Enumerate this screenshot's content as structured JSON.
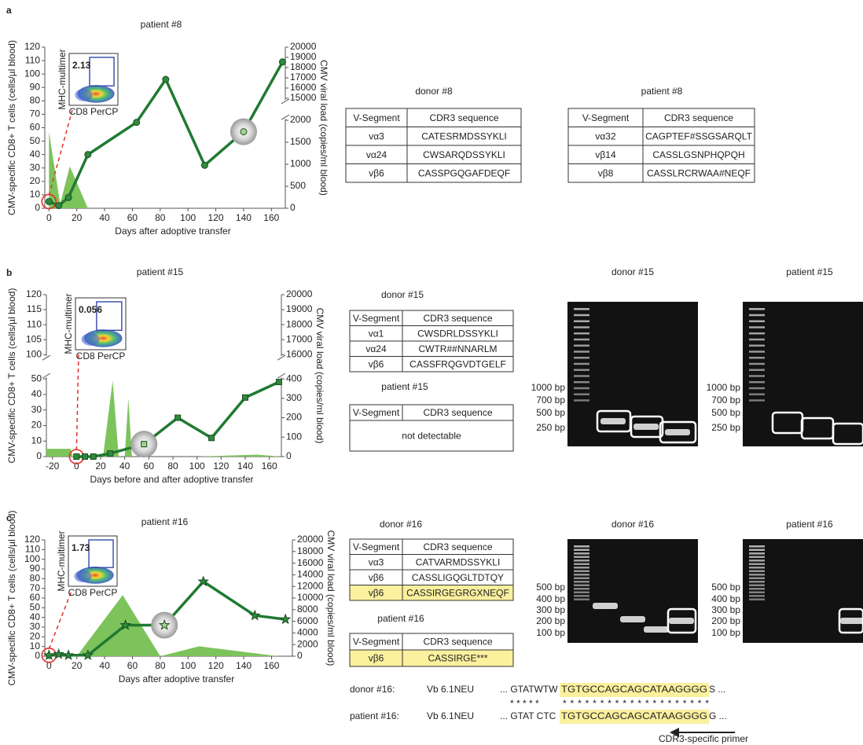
{
  "panel_labels": [
    "a",
    "b",
    "c"
  ],
  "chart_data": [
    {
      "type": "line",
      "title": "patient #8",
      "xlabel": "Days after adoptive transfer",
      "ylabel": "CMV-specific CD8+ T cells (cells/µl blood)",
      "y2label": "CMV viral load (copies/ml blood)",
      "xlim": [
        -3,
        170
      ],
      "xticks": [
        0,
        20,
        40,
        60,
        80,
        100,
        120,
        140,
        160
      ],
      "ylim": [
        0,
        120
      ],
      "yticks": [
        0,
        10,
        20,
        30,
        40,
        50,
        60,
        70,
        80,
        90,
        100,
        110,
        120
      ],
      "y2lim": [
        0,
        20000
      ],
      "y2ticks": [
        0,
        500,
        1000,
        1500,
        2000,
        15000,
        16000,
        17000,
        18000,
        19000,
        20000
      ],
      "y2_break": [
        2000,
        15000
      ],
      "series": [
        {
          "type": "area",
          "axis": "y2",
          "color": "#7dc35b",
          "x": [
            0,
            0,
            8,
            15,
            28
          ],
          "values": [
            0,
            1740,
            100,
            950,
            0
          ]
        },
        {
          "type": "line",
          "axis": "y",
          "color": "#1f7a31",
          "marker": "circle",
          "highlighted_point": 7,
          "x": [
            0,
            7,
            14,
            28,
            63,
            84,
            112,
            140,
            168
          ],
          "values": [
            5,
            2,
            8,
            40,
            64,
            96,
            32,
            57,
            109
          ]
        }
      ],
      "inset": {
        "gate_value": 2.13,
        "ylabel": "MHC-multimer",
        "xlabel": "CD8 PerCP"
      }
    },
    {
      "type": "line",
      "title": "patient #15",
      "xlabel": "Days before and after adoptive transfer",
      "ylabel": "CMV-specific CD8+ T cells (cells/µl blood)",
      "y2label": "CMV viral load (copies/ml blood)",
      "xlim": [
        -25,
        170
      ],
      "xticks": [
        -20,
        0,
        20,
        40,
        60,
        80,
        100,
        120,
        140,
        160
      ],
      "ylim": [
        0,
        120
      ],
      "yticks": [
        0,
        10,
        20,
        30,
        40,
        50,
        100,
        105,
        110,
        115,
        120
      ],
      "y_break": [
        50,
        100
      ],
      "y2lim": [
        0,
        20000
      ],
      "y2ticks": [
        0,
        100,
        200,
        300,
        400,
        16000,
        17000,
        18000,
        19000,
        20000
      ],
      "y2_break": [
        400,
        16000
      ],
      "series": [
        {
          "type": "area",
          "axis": "y2",
          "color": "#7dc35b",
          "x": [
            -25,
            -25,
            -5,
            -3,
            22,
            30,
            35,
            40,
            43,
            46,
            100,
            150,
            170
          ],
          "values": [
            0,
            40,
            40,
            0,
            0,
            390,
            0,
            0,
            300,
            0,
            0,
            10,
            0
          ]
        },
        {
          "type": "line",
          "axis": "y",
          "color": "#1f7a31",
          "marker": "square",
          "highlighted_point": 4,
          "x": [
            0,
            7,
            14,
            28,
            56,
            84,
            112,
            140,
            168
          ],
          "values": [
            0,
            0,
            0,
            2,
            8,
            25,
            12,
            38,
            48
          ]
        }
      ],
      "inset": {
        "gate_value": 0.056,
        "ylabel": "MHC-multimer",
        "xlabel": "CD8 PerCP"
      }
    },
    {
      "type": "line",
      "title": "patient #16",
      "xlabel": "Days after adoptive transfer",
      "ylabel": "CMV-specific CD8+ T cells (cells/µl blood)",
      "y2label": "CMV viral load (copies/ml blood)",
      "xlim": [
        -3,
        175
      ],
      "xticks": [
        0,
        20,
        40,
        60,
        80,
        100,
        120,
        140,
        160
      ],
      "ylim": [
        0,
        120
      ],
      "yticks": [
        0,
        10,
        20,
        30,
        40,
        50,
        60,
        70,
        80,
        90,
        100,
        110,
        120
      ],
      "y2lim": [
        0,
        20000
      ],
      "y2ticks": [
        0,
        2000,
        4000,
        6000,
        8000,
        10000,
        12000,
        14000,
        16000,
        18000,
        20000
      ],
      "series": [
        {
          "type": "area",
          "axis": "y2",
          "color": "#7dc35b",
          "x": [
            20,
            53,
            80,
            108,
            165
          ],
          "values": [
            0,
            10500,
            0,
            1700,
            0
          ]
        },
        {
          "type": "line",
          "axis": "y",
          "color": "#1f7a31",
          "marker": "star",
          "highlighted_point": 5,
          "x": [
            0,
            7,
            14,
            28,
            55,
            83,
            111,
            148,
            170
          ],
          "values": [
            1,
            2,
            1,
            1,
            32,
            32,
            77,
            42,
            38
          ]
        }
      ],
      "inset": {
        "gate_value": 1.73,
        "ylabel": "MHC-multimer",
        "xlabel": "CD8 PerCP"
      }
    }
  ],
  "tables": [
    {
      "title": "donor #8",
      "header": [
        "V-Segment",
        "CDR3 sequence"
      ],
      "highlighted_rows": [],
      "rows": [
        [
          "vα3",
          "CATESRMDSSYKLI"
        ],
        [
          "vα24",
          "CWSARQDSSYKLI"
        ],
        [
          "vβ6",
          "CASSPGQGAFDEQF"
        ]
      ]
    },
    {
      "title": "patient #8",
      "header": [
        "V-Segment",
        "CDR3 sequence"
      ],
      "highlighted_rows": [],
      "rows": [
        [
          "vα32",
          "CAGPTEF#SSGSARQLT"
        ],
        [
          "vβ14",
          "CASSLGSNPHQPQH"
        ],
        [
          "vβ8",
          "CASSLRCRWAA#NEQF"
        ]
      ]
    },
    {
      "title": "donor #15",
      "header": [
        "V-Segment",
        "CDR3 sequence"
      ],
      "highlighted_rows": [],
      "rows": [
        [
          "vα1",
          "CWSDRLDSSYKLI"
        ],
        [
          "vα24",
          "CWTR##NNARLM"
        ],
        [
          "vβ6",
          "CASSFRQGVDTGELF"
        ]
      ]
    },
    {
      "title": "patient #15",
      "header": [
        "V-Segment",
        "CDR3 sequence"
      ],
      "highlighted_rows": [],
      "rows": [
        [
          "not detectable"
        ]
      ]
    },
    {
      "title": "donor #16",
      "header": [
        "V-Segment",
        "CDR3 sequence"
      ],
      "highlighted_rows": [
        2
      ],
      "rows": [
        [
          "vα3",
          "CATVARMDSSYKLI"
        ],
        [
          "vβ6",
          "CASSLIGQGLTDTQY"
        ],
        [
          "vβ6",
          "CASSIRGEGRGXNEQF"
        ]
      ]
    },
    {
      "title": "patient #16",
      "header": [
        "V-Segment",
        "CDR3 sequence"
      ],
      "highlighted_rows": [
        0
      ],
      "rows": [
        [
          "vβ6",
          "CASSIRGE***"
        ]
      ]
    }
  ],
  "gels": [
    {
      "title": "donor #15",
      "ladder_labels": [
        "1000 bp",
        "700 bp",
        "500 bp",
        "250 bp"
      ]
    },
    {
      "title": "patient #15",
      "ladder_labels": [
        "1000 bp",
        "700 bp",
        "500 bp",
        "250 bp"
      ]
    },
    {
      "title": "donor #16",
      "ladder_labels": [
        "500 bp",
        "400 bp",
        "300 bp",
        "200 bp",
        "100 bp"
      ]
    },
    {
      "title": "patient #16",
      "ladder_labels": [
        "500 bp",
        "400 bp",
        "300 bp",
        "200 bp",
        "100 bp"
      ]
    }
  ],
  "alignment": {
    "rows": [
      {
        "name": "donor #16:",
        "segment": "Vb 6.1NEU",
        "prefix": "... GTATWTW",
        "primer": "TGTGCCAGCAGCATAAGGGG",
        "suffix": "S ..."
      },
      {
        "name": "patient #16:",
        "segment": "Vb 6.1NEU",
        "prefix": "... GTAT  CTC",
        "primer": "TGTGCCAGCAGCATAAGGGG",
        "suffix": "G ..."
      }
    ],
    "match_left": "* * * *    *",
    "match_primer": "* * * * * * * * * * * * * * * * * * * *",
    "primer_label": "CDR3-specific primer"
  }
}
